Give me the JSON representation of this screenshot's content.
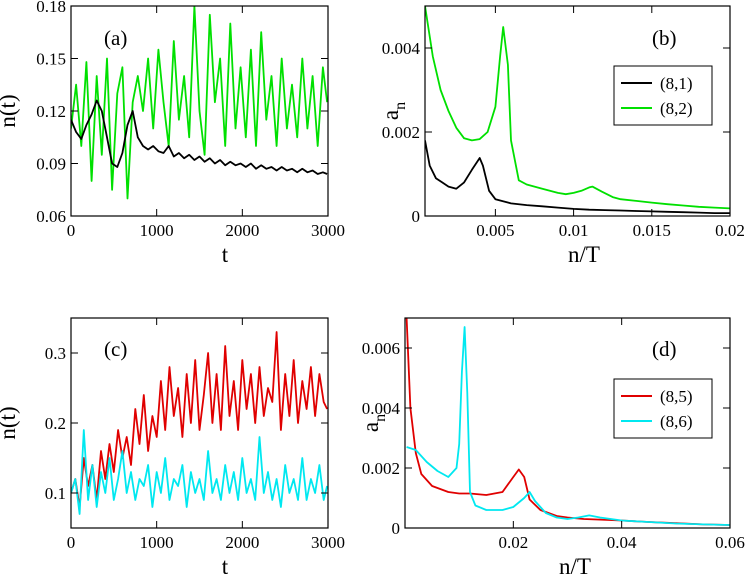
{
  "chart_data": [
    {
      "type": "line",
      "panel": "(a)",
      "xlabel": "t",
      "ylabel": "n(t)",
      "xlim": [
        0,
        3000
      ],
      "ylim": [
        0.06,
        0.18
      ],
      "xticks": [
        0,
        1000,
        2000,
        3000
      ],
      "xtick_labels": [
        "0",
        "1000",
        "2000",
        "3000"
      ],
      "yticks": [
        0.06,
        0.09,
        0.12,
        0.15,
        0.18
      ],
      "ytick_labels": [
        "0.06",
        "0.09",
        "0.12",
        "0.15",
        "0.18"
      ],
      "legend": "none",
      "series": [
        {
          "color": "#00e000",
          "x": [
            0,
            60,
            120,
            180,
            240,
            300,
            360,
            420,
            480,
            540,
            600,
            660,
            720,
            780,
            840,
            900,
            960,
            1020,
            1080,
            1140,
            1200,
            1260,
            1320,
            1380,
            1440,
            1500,
            1560,
            1620,
            1680,
            1740,
            1800,
            1860,
            1920,
            1980,
            2040,
            2100,
            2160,
            2220,
            2280,
            2340,
            2400,
            2460,
            2520,
            2580,
            2640,
            2700,
            2760,
            2820,
            2880,
            2940,
            2990
          ],
          "y": [
            0.11,
            0.135,
            0.1,
            0.148,
            0.08,
            0.14,
            0.095,
            0.15,
            0.075,
            0.13,
            0.145,
            0.07,
            0.125,
            0.14,
            0.12,
            0.15,
            0.11,
            0.155,
            0.125,
            0.1,
            0.16,
            0.115,
            0.14,
            0.105,
            0.18,
            0.12,
            0.095,
            0.175,
            0.125,
            0.15,
            0.1,
            0.17,
            0.11,
            0.145,
            0.105,
            0.155,
            0.1,
            0.165,
            0.115,
            0.14,
            0.1,
            0.15,
            0.11,
            0.135,
            0.105,
            0.15,
            0.11,
            0.14,
            0.1,
            0.145,
            0.125
          ]
        },
        {
          "color": "#000000",
          "x": [
            0,
            60,
            120,
            180,
            240,
            300,
            360,
            420,
            480,
            540,
            600,
            660,
            720,
            780,
            840,
            900,
            960,
            1020,
            1080,
            1140,
            1200,
            1260,
            1320,
            1380,
            1440,
            1500,
            1560,
            1620,
            1680,
            1740,
            1800,
            1860,
            1920,
            1980,
            2040,
            2100,
            2160,
            2220,
            2280,
            2340,
            2400,
            2460,
            2520,
            2580,
            2640,
            2700,
            2760,
            2820,
            2880,
            2940,
            2990
          ],
          "y": [
            0.115,
            0.108,
            0.104,
            0.112,
            0.118,
            0.126,
            0.12,
            0.105,
            0.09,
            0.088,
            0.096,
            0.112,
            0.12,
            0.105,
            0.1,
            0.098,
            0.1,
            0.097,
            0.096,
            0.1,
            0.094,
            0.096,
            0.093,
            0.095,
            0.092,
            0.094,
            0.091,
            0.093,
            0.09,
            0.092,
            0.089,
            0.091,
            0.089,
            0.09,
            0.088,
            0.09,
            0.087,
            0.089,
            0.087,
            0.088,
            0.086,
            0.088,
            0.086,
            0.087,
            0.085,
            0.087,
            0.085,
            0.086,
            0.084,
            0.085,
            0.084
          ]
        }
      ]
    },
    {
      "type": "line",
      "panel": "(b)",
      "xlabel": "n/T",
      "ylabel": "a_n",
      "ylabel_main": "a",
      "ylabel_sub": "n",
      "xlim": [
        0.0005,
        0.02
      ],
      "ylim": [
        0,
        0.005
      ],
      "xticks": [
        0.005,
        0.01,
        0.015,
        0.02
      ],
      "xtick_labels": [
        "0.005",
        "0.01",
        "0.015",
        "0.02"
      ],
      "yticks": [
        0,
        0.002,
        0.004
      ],
      "ytick_labels": [
        "0",
        "0.002",
        "0.004"
      ],
      "legend": "top-right",
      "series": [
        {
          "name": "(8,1)",
          "color": "#000000",
          "x": [
            0.0005,
            0.0008,
            0.0012,
            0.0016,
            0.002,
            0.0025,
            0.003,
            0.0035,
            0.004,
            0.0042,
            0.0046,
            0.005,
            0.006,
            0.007,
            0.008,
            0.009,
            0.01,
            0.011,
            0.012,
            0.013,
            0.014,
            0.015,
            0.016,
            0.017,
            0.018,
            0.019,
            0.02
          ],
          "y": [
            0.0018,
            0.0012,
            0.0009,
            0.0008,
            0.0007,
            0.00065,
            0.0008,
            0.0011,
            0.00138,
            0.0012,
            0.0006,
            0.0004,
            0.0003,
            0.00026,
            0.00023,
            0.0002,
            0.00017,
            0.00015,
            0.00014,
            0.00013,
            0.00012,
            0.00011,
            0.0001,
            9e-05,
            8e-05,
            7e-05,
            7e-05
          ]
        },
        {
          "name": "(8,2)",
          "color": "#00e000",
          "x": [
            0.0005,
            0.001,
            0.0015,
            0.002,
            0.0025,
            0.003,
            0.0035,
            0.004,
            0.0045,
            0.005,
            0.0053,
            0.0055,
            0.0058,
            0.006,
            0.0065,
            0.007,
            0.008,
            0.009,
            0.0095,
            0.01,
            0.0105,
            0.011,
            0.0112,
            0.0118,
            0.0125,
            0.013,
            0.014,
            0.015,
            0.016,
            0.017,
            0.018,
            0.019,
            0.02
          ],
          "y": [
            0.005,
            0.0038,
            0.003,
            0.0025,
            0.0021,
            0.00185,
            0.0018,
            0.00183,
            0.002,
            0.0026,
            0.0038,
            0.0045,
            0.0036,
            0.0018,
            0.00085,
            0.00075,
            0.00065,
            0.00055,
            0.00052,
            0.00055,
            0.0006,
            0.00068,
            0.0007,
            0.00058,
            0.00045,
            0.0004,
            0.00036,
            0.00032,
            0.00028,
            0.00025,
            0.00022,
            0.0002,
            0.00018
          ]
        }
      ]
    },
    {
      "type": "line",
      "panel": "(c)",
      "xlabel": "t",
      "ylabel": "n(t)",
      "xlim": [
        0,
        3000
      ],
      "ylim": [
        0.05,
        0.35
      ],
      "xticks": [
        0,
        1000,
        2000,
        3000
      ],
      "xtick_labels": [
        "0",
        "1000",
        "2000",
        "3000"
      ],
      "yticks": [
        0.1,
        0.2,
        0.3
      ],
      "ytick_labels": [
        "0.1",
        "0.2",
        "0.3"
      ],
      "legend": "none",
      "series": [
        {
          "color": "#e00000",
          "x": [
            0,
            50,
            100,
            150,
            200,
            250,
            300,
            350,
            400,
            450,
            500,
            550,
            600,
            650,
            700,
            750,
            800,
            850,
            900,
            950,
            1000,
            1050,
            1100,
            1150,
            1200,
            1250,
            1300,
            1350,
            1400,
            1450,
            1500,
            1550,
            1600,
            1650,
            1700,
            1750,
            1800,
            1850,
            1900,
            1950,
            2000,
            2050,
            2100,
            2150,
            2200,
            2250,
            2300,
            2350,
            2400,
            2450,
            2500,
            2550,
            2600,
            2650,
            2700,
            2750,
            2800,
            2850,
            2900,
            2950,
            2990
          ],
          "y": [
            0.1,
            0.12,
            0.08,
            0.15,
            0.11,
            0.14,
            0.09,
            0.16,
            0.12,
            0.17,
            0.13,
            0.19,
            0.15,
            0.18,
            0.14,
            0.22,
            0.17,
            0.24,
            0.16,
            0.21,
            0.18,
            0.26,
            0.19,
            0.28,
            0.21,
            0.25,
            0.18,
            0.27,
            0.2,
            0.29,
            0.19,
            0.24,
            0.3,
            0.2,
            0.27,
            0.19,
            0.31,
            0.21,
            0.26,
            0.19,
            0.29,
            0.22,
            0.27,
            0.2,
            0.28,
            0.21,
            0.25,
            0.23,
            0.33,
            0.19,
            0.27,
            0.21,
            0.29,
            0.2,
            0.26,
            0.22,
            0.28,
            0.21,
            0.27,
            0.23,
            0.22
          ]
        },
        {
          "color": "#00e8f0",
          "x": [
            0,
            50,
            100,
            150,
            200,
            250,
            300,
            350,
            400,
            450,
            500,
            550,
            600,
            650,
            700,
            750,
            800,
            850,
            900,
            950,
            1000,
            1050,
            1100,
            1150,
            1200,
            1250,
            1300,
            1350,
            1400,
            1450,
            1500,
            1550,
            1600,
            1650,
            1700,
            1750,
            1800,
            1850,
            1900,
            1950,
            2000,
            2050,
            2100,
            2150,
            2200,
            2250,
            2300,
            2350,
            2400,
            2450,
            2500,
            2550,
            2600,
            2650,
            2700,
            2750,
            2800,
            2850,
            2900,
            2950,
            2990
          ],
          "y": [
            0.1,
            0.12,
            0.07,
            0.19,
            0.09,
            0.14,
            0.08,
            0.13,
            0.1,
            0.15,
            0.09,
            0.12,
            0.16,
            0.1,
            0.13,
            0.09,
            0.12,
            0.11,
            0.14,
            0.08,
            0.13,
            0.1,
            0.15,
            0.09,
            0.12,
            0.11,
            0.14,
            0.08,
            0.13,
            0.1,
            0.12,
            0.09,
            0.16,
            0.1,
            0.12,
            0.09,
            0.14,
            0.1,
            0.13,
            0.09,
            0.15,
            0.1,
            0.12,
            0.09,
            0.18,
            0.1,
            0.13,
            0.09,
            0.12,
            0.08,
            0.14,
            0.1,
            0.12,
            0.09,
            0.15,
            0.09,
            0.12,
            0.1,
            0.14,
            0.09,
            0.11
          ]
        }
      ]
    },
    {
      "type": "line",
      "panel": "(d)",
      "xlabel": "n/T",
      "ylabel": "a_n",
      "ylabel_main": "a",
      "ylabel_sub": "n",
      "xlim": [
        0,
        0.06
      ],
      "ylim": [
        0,
        0.007
      ],
      "xticks": [
        0.02,
        0.04,
        0.06
      ],
      "xtick_labels": [
        "0.02",
        "0.04",
        "0.06"
      ],
      "yticks": [
        0,
        0.002,
        0.004,
        0.006
      ],
      "ytick_labels": [
        "0",
        "0.002",
        "0.004",
        "0.006"
      ],
      "legend": "center-right",
      "series": [
        {
          "name": "(8,5)",
          "color": "#e00000",
          "x": [
            0.0003,
            0.001,
            0.002,
            0.003,
            0.005,
            0.008,
            0.01,
            0.012,
            0.015,
            0.018,
            0.02,
            0.021,
            0.022,
            0.023,
            0.025,
            0.028,
            0.03,
            0.033,
            0.036,
            0.04,
            0.045,
            0.05,
            0.055,
            0.06
          ],
          "y": [
            0.007,
            0.004,
            0.0025,
            0.0018,
            0.0014,
            0.0012,
            0.00115,
            0.00115,
            0.0011,
            0.0012,
            0.0017,
            0.00195,
            0.0017,
            0.00095,
            0.0006,
            0.0004,
            0.00035,
            0.0003,
            0.00028,
            0.00025,
            0.0002,
            0.00016,
            0.00012,
            0.0001
          ]
        },
        {
          "name": "(8,6)",
          "color": "#00e8f0",
          "x": [
            0.0003,
            0.002,
            0.004,
            0.006,
            0.008,
            0.0095,
            0.01,
            0.0105,
            0.011,
            0.0115,
            0.012,
            0.013,
            0.015,
            0.018,
            0.02,
            0.022,
            0.023,
            0.024,
            0.026,
            0.028,
            0.03,
            0.032,
            0.034,
            0.036,
            0.04,
            0.045,
            0.05,
            0.055,
            0.06
          ],
          "y": [
            0.0027,
            0.0026,
            0.0022,
            0.0019,
            0.0017,
            0.002,
            0.0028,
            0.0052,
            0.0067,
            0.0045,
            0.0012,
            0.00075,
            0.0006,
            0.0006,
            0.0007,
            0.001,
            0.0012,
            0.0009,
            0.0005,
            0.00035,
            0.0003,
            0.00035,
            0.00042,
            0.00035,
            0.00025,
            0.0002,
            0.00015,
            0.00012,
            0.0001
          ]
        }
      ]
    }
  ]
}
